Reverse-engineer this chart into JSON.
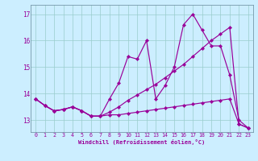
{
  "xlabel": "Windchill (Refroidissement éolien,°C)",
  "bg_color": "#cceeff",
  "line_color": "#990099",
  "grid_color": "#99cccc",
  "xlim": [
    -0.5,
    23.5
  ],
  "ylim": [
    12.55,
    17.35
  ],
  "yticks": [
    13,
    14,
    15,
    16,
    17
  ],
  "xticks": [
    0,
    1,
    2,
    3,
    4,
    5,
    6,
    7,
    8,
    9,
    10,
    11,
    12,
    13,
    14,
    15,
    16,
    17,
    18,
    19,
    20,
    21,
    22,
    23
  ],
  "series": [
    [
      13.8,
      13.55,
      13.35,
      13.4,
      13.5,
      13.35,
      13.15,
      13.15,
      13.8,
      14.4,
      15.4,
      15.3,
      16.0,
      13.8,
      14.3,
      15.0,
      16.6,
      17.0,
      16.4,
      15.8,
      15.8,
      14.7,
      13.0,
      12.7
    ],
    [
      13.8,
      13.55,
      13.35,
      13.4,
      13.5,
      13.35,
      13.15,
      13.15,
      13.2,
      13.2,
      13.25,
      13.3,
      13.35,
      13.4,
      13.45,
      13.5,
      13.55,
      13.6,
      13.65,
      13.7,
      13.75,
      13.8,
      12.85,
      12.7
    ],
    [
      13.8,
      13.55,
      13.35,
      13.4,
      13.5,
      13.35,
      13.15,
      13.15,
      13.3,
      13.5,
      13.75,
      13.95,
      14.15,
      14.35,
      14.6,
      14.85,
      15.1,
      15.4,
      15.7,
      16.0,
      16.25,
      16.5,
      12.85,
      12.7
    ]
  ],
  "marker": "D",
  "markersize": 2.2,
  "linewidth": 0.85,
  "tick_fontsize": 4.8,
  "xlabel_fontsize": 5.0,
  "spine_color": "#7799aa"
}
